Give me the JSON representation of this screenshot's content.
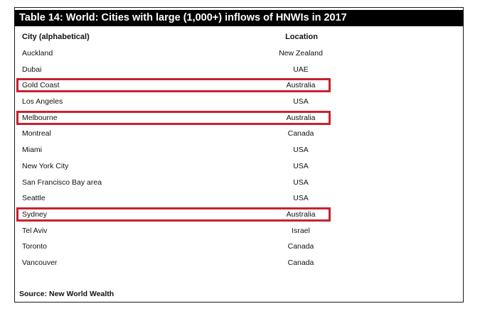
{
  "table": {
    "title": "Table 14: World: Cities with large (1,000+) inflows of HNWIs in 2017",
    "headers": {
      "city": "City (alphabetical)",
      "location": "Location"
    },
    "rows": [
      {
        "city": "Auckland",
        "location": "New Zealand",
        "highlighted": false
      },
      {
        "city": "Dubai",
        "location": "UAE",
        "highlighted": false
      },
      {
        "city": "Gold Coast",
        "location": "Australia",
        "highlighted": true
      },
      {
        "city": "Los Angeles",
        "location": "USA",
        "highlighted": false
      },
      {
        "city": "Melbourne",
        "location": "Australia",
        "highlighted": true
      },
      {
        "city": "Montreal",
        "location": "Canada",
        "highlighted": false
      },
      {
        "city": "Miami",
        "location": "USA",
        "highlighted": false
      },
      {
        "city": "New York City",
        "location": "USA",
        "highlighted": false
      },
      {
        "city": "San Francisco Bay area",
        "location": "USA",
        "highlighted": false
      },
      {
        "city": "Seattle",
        "location": "USA",
        "highlighted": false
      },
      {
        "city": "Sydney",
        "location": "Australia",
        "highlighted": true
      },
      {
        "city": "Tel Aviv",
        "location": "Israel",
        "highlighted": false
      },
      {
        "city": "Toronto",
        "location": "Canada",
        "highlighted": false
      },
      {
        "city": "Vancouver",
        "location": "Canada",
        "highlighted": false
      }
    ],
    "source": "Source: New World Wealth"
  },
  "colors": {
    "highlight_border": "#c8222f",
    "title_background": "#000000",
    "title_text": "#ffffff"
  }
}
